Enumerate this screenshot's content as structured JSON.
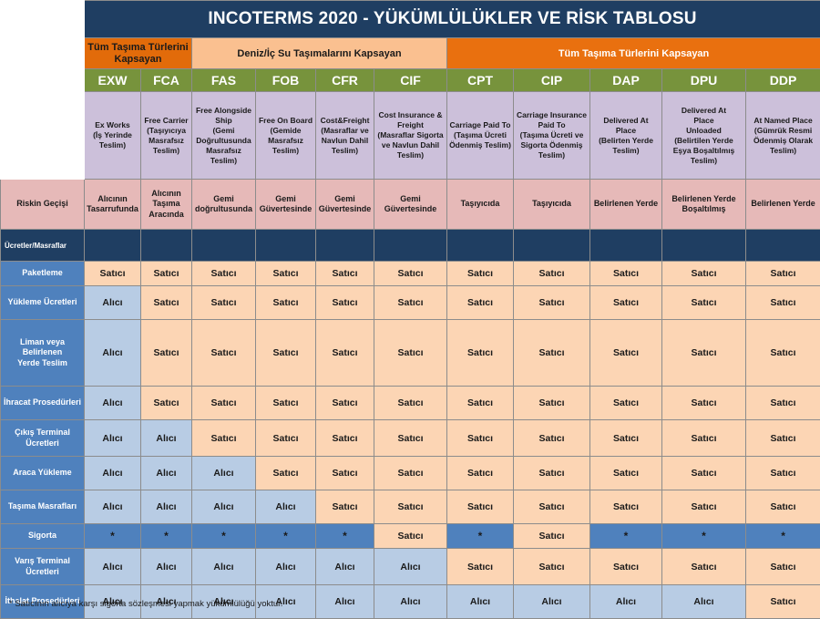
{
  "title": "INCOTERMS 2020 - YÜKÜMLÜLÜKLER VE RİSK TABLOSU",
  "groups": {
    "all_modes_left": "Tüm Taşıma Türlerini Kapsayan",
    "sea": "Deniz/İç Su Taşımalarını Kapsayan",
    "all_modes_right": "Tüm Taşıma Türlerini Kapsayan"
  },
  "terms": [
    {
      "code": "EXW",
      "desc": "Ex Works\n(İş Yerinde\nTeslim)",
      "risk": "Alıcının\nTasarrufunda"
    },
    {
      "code": "FCA",
      "desc": "Free Carrier\n(Taşıyıcıya\nMasrafsız\nTeslim)",
      "risk": "Alıcının\nTaşıma\nAracında"
    },
    {
      "code": "FAS",
      "desc": "Free Alongside\nShip\n(Gemi\nDoğrultusunda\nMasrafsız\nTeslim)",
      "risk": "Gemi\ndoğrultusunda"
    },
    {
      "code": "FOB",
      "desc": "Free On Board\n(Gemide\nMasrafsız\nTeslim)",
      "risk": "Gemi\nGüvertesinde"
    },
    {
      "code": "CFR",
      "desc": "Cost&Freight\n(Masraflar ve\nNavlun Dahil\nTeslim)",
      "risk": "Gemi\nGüvertesinde"
    },
    {
      "code": "CIF",
      "desc": "Cost Insurance &\nFreight\n(Masraflar Sigorta\nve Navlun Dahil\nTeslim)",
      "risk": "Gemi\nGüvertesinde"
    },
    {
      "code": "CPT",
      "desc": "Carriage Paid To\n(Taşıma Ücreti\nÖdenmiş Teslim)",
      "risk": "Taşıyıcıda"
    },
    {
      "code": "CIP",
      "desc": "Carriage Insurance\nPaid To\n(Taşıma Ücreti ve\nSigorta Ödenmiş\nTeslim)",
      "risk": "Taşıyıcıda"
    },
    {
      "code": "DAP",
      "desc": "Delivered At\nPlace\n(Belirten Yerde\nTeslim)",
      "risk": "Belirlenen Yerde"
    },
    {
      "code": "DPU",
      "desc": "Delivered At\nPlace\nUnloaded\n(Belirtilen Yerde\nEşya Boşaltılmış\nTeslim)",
      "risk": "Belirlenen Yerde\nBoşaltılmış"
    },
    {
      "code": "DDP",
      "desc": "At Named Place\n(Gümrük Resmi\nÖdenmiş Olarak\nTeslim)",
      "risk": "Belirlenen Yerde"
    }
  ],
  "risk_label": "Riskin Geçişi",
  "section_label": "Ücretler/Masraflar",
  "values": {
    "S": "Satıcı",
    "B": "Alıcı",
    "X": "*"
  },
  "rows": [
    {
      "label": "Paketleme",
      "cells": [
        "S",
        "S",
        "S",
        "S",
        "S",
        "S",
        "S",
        "S",
        "S",
        "S",
        "S"
      ]
    },
    {
      "label": "Yükleme Ücretleri",
      "cells": [
        "B",
        "S",
        "S",
        "S",
        "S",
        "S",
        "S",
        "S",
        "S",
        "S",
        "S"
      ]
    },
    {
      "label": "Liman veya Belirlenen\nYerde Teslim",
      "cells": [
        "B",
        "S",
        "S",
        "S",
        "S",
        "S",
        "S",
        "S",
        "S",
        "S",
        "S"
      ]
    },
    {
      "label": "İhracat Prosedürleri",
      "cells": [
        "B",
        "S",
        "S",
        "S",
        "S",
        "S",
        "S",
        "S",
        "S",
        "S",
        "S"
      ]
    },
    {
      "label": "Çıkış Terminal\nÜcretleri",
      "cells": [
        "B",
        "B",
        "S",
        "S",
        "S",
        "S",
        "S",
        "S",
        "S",
        "S",
        "S"
      ]
    },
    {
      "label": "Araca Yükleme",
      "cells": [
        "B",
        "B",
        "B",
        "S",
        "S",
        "S",
        "S",
        "S",
        "S",
        "S",
        "S"
      ]
    },
    {
      "label": "Taşıma Masrafları",
      "cells": [
        "B",
        "B",
        "B",
        "B",
        "S",
        "S",
        "S",
        "S",
        "S",
        "S",
        "S"
      ]
    },
    {
      "label": "Sigorta",
      "cells": [
        "X",
        "X",
        "X",
        "X",
        "X",
        "S",
        "X",
        "S",
        "X",
        "X",
        "X"
      ]
    },
    {
      "label": "Varış Terminal\nÜcretleri",
      "cells": [
        "B",
        "B",
        "B",
        "B",
        "B",
        "B",
        "S",
        "S",
        "S",
        "S",
        "S"
      ]
    },
    {
      "label": "İthalat Prosedürleri",
      "cells": [
        "B",
        "B",
        "B",
        "B",
        "B",
        "B",
        "B",
        "B",
        "B",
        "B",
        "S"
      ]
    }
  ],
  "footnote": "* Satıcının alıcıya karşı sigorta sözleşmesi yapmak yükümlülüğü yoktur."
}
